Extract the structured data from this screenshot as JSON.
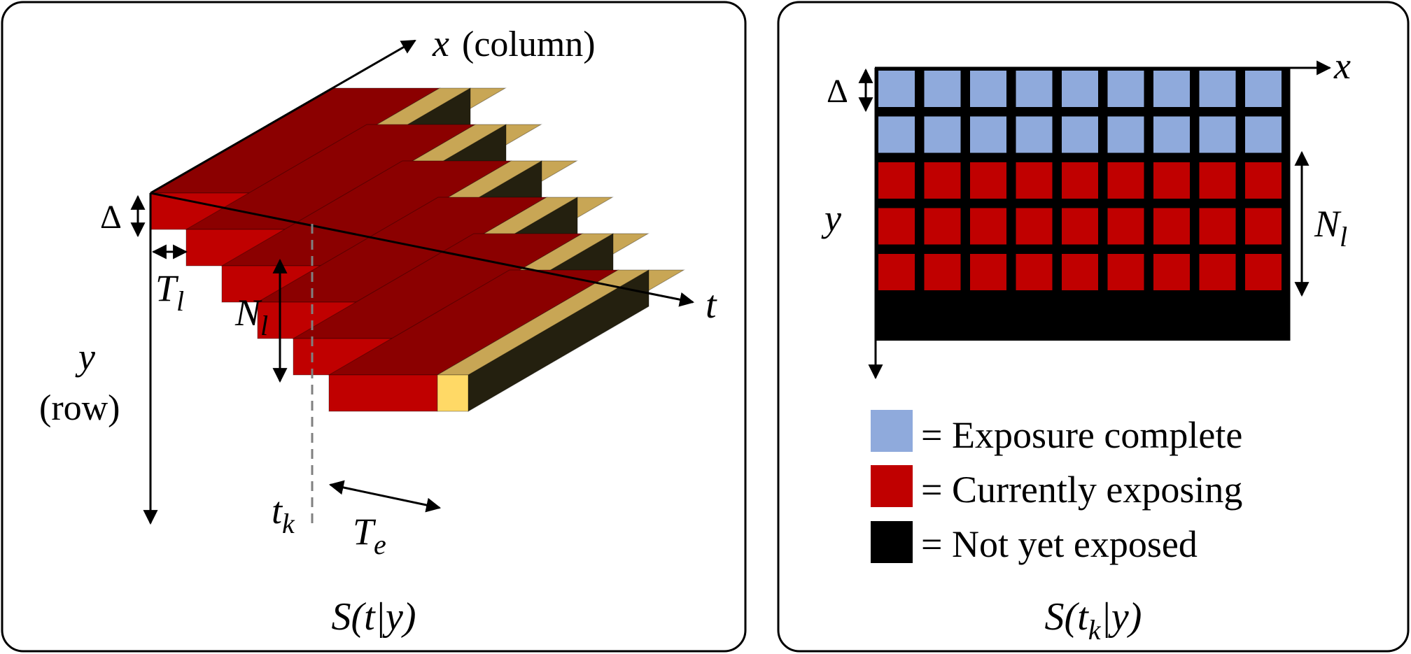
{
  "left_panel": {
    "axis_x_var": "x",
    "axis_x_note": "(column)",
    "axis_t": "t",
    "axis_y_var": "y",
    "axis_y_note": "(row)",
    "delta": "Δ",
    "T_l": "T",
    "T_l_sub": "l",
    "N_l": "N",
    "N_l_sub": "l",
    "t_k": "t",
    "t_k_sub": "k",
    "T_e": "T",
    "T_e_sub": "e",
    "caption": "S(t|y)",
    "colors": {
      "red_front": "#c00000",
      "red_top": "#8b0000",
      "gold_top": "#c8a655",
      "dark_side": "#24200f",
      "yellow_front": "#ffd966"
    }
  },
  "right_panel": {
    "axis_x": "x",
    "axis_y": "y",
    "delta": "Δ",
    "N_l": "N",
    "N_l_sub": "l",
    "caption": "S(t",
    "caption_sub": "k",
    "caption_end": "|y)",
    "grid": {
      "columns": 9,
      "rows_complete": 2,
      "rows_exposing": 3,
      "rows_not_exposed": 1
    },
    "legend": [
      {
        "label": "= Exposure complete",
        "color": "#8faadc"
      },
      {
        "label": "= Currently exposing",
        "color": "#c00000"
      },
      {
        "label": "= Not yet exposed",
        "color": "#000000"
      }
    ]
  }
}
